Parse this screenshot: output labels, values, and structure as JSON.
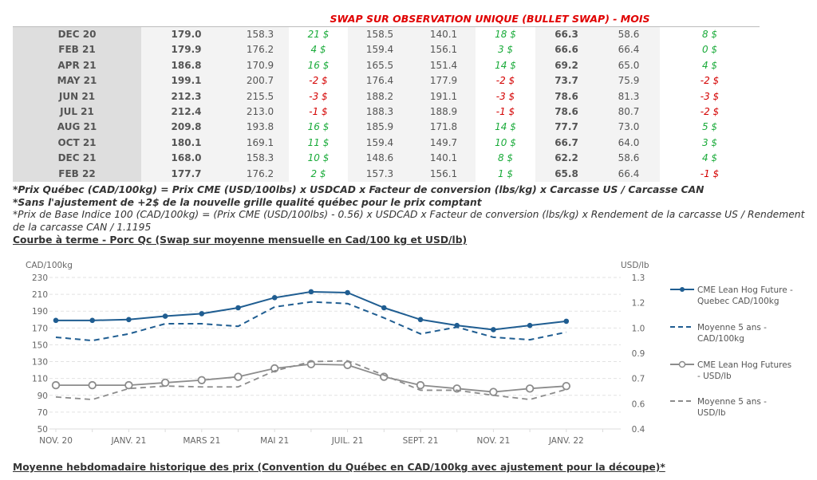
{
  "swap_title": "SWAP SUR OBSERVATION UNIQUE (BULLET SWAP) - MOIS",
  "table": {
    "rows": [
      [
        "DEC 20",
        "179.0",
        "158.3",
        "21 $",
        "158.5",
        "140.1",
        "18 $",
        "66.3",
        "58.6",
        "8 $"
      ],
      [
        "FEB 21",
        "179.9",
        "176.2",
        "4 $",
        "159.4",
        "156.1",
        "3 $",
        "66.6",
        "66.4",
        "0 $"
      ],
      [
        "APR 21",
        "186.8",
        "170.9",
        "16 $",
        "165.5",
        "151.4",
        "14 $",
        "69.2",
        "65.0",
        "4 $"
      ],
      [
        "MAY 21",
        "199.1",
        "200.7",
        "-2 $",
        "176.4",
        "177.9",
        "-2 $",
        "73.7",
        "75.9",
        "-2 $"
      ],
      [
        "JUN 21",
        "212.3",
        "215.5",
        "-3 $",
        "188.2",
        "191.1",
        "-3 $",
        "78.6",
        "81.3",
        "-3 $"
      ],
      [
        "JUL 21",
        "212.4",
        "213.0",
        "-1 $",
        "188.3",
        "188.9",
        "-1 $",
        "78.6",
        "80.7",
        "-2 $"
      ],
      [
        "AUG 21",
        "209.8",
        "193.8",
        "16 $",
        "185.9",
        "171.8",
        "14 $",
        "77.7",
        "73.0",
        "5 $"
      ],
      [
        "OCT 21",
        "180.1",
        "169.1",
        "11 $",
        "159.4",
        "149.7",
        "10 $",
        "66.7",
        "64.0",
        "3 $"
      ],
      [
        "DEC 21",
        "168.0",
        "158.3",
        "10 $",
        "148.6",
        "140.1",
        "8 $",
        "62.2",
        "58.6",
        "4 $"
      ],
      [
        "FEB 22",
        "177.7",
        "176.2",
        "2 $",
        "157.3",
        "156.1",
        "1 $",
        "65.8",
        "66.4",
        "-1 $"
      ]
    ]
  },
  "notes": {
    "note1": "*Prix Québec (CAD/100kg) = Prix CME (USD/100lbs) x USDCAD x Facteur de conversion (lbs/kg) x Carcasse US / Carcasse CAN",
    "note2": "*Sans l'ajustement de +2$ de la nouvelle grille qualité québec pour le prix comptant",
    "note3": "*Prix de Base Indice 100 (CAD/100kg) = (Prix CME (USD/100lbs) - 0.56) x USDCAD x Facteur de conversion (lbs/kg) x Rendement de la carcasse US / Rendement de la carcasse CAN / 1.1195"
  },
  "sections": {
    "chart_heading": "Courbe à terme - Porc Qc (Swap sur moyenne mensuelle en Cad/100 kg et USD/lb)",
    "bottom_heading": "Moyenne hebdomadaire historique des prix (Convention du Québec en CAD/100kg avec ajustement pour la découpe)*"
  },
  "colors": {
    "blue": "#1f5d91",
    "gray": "#8c8c8c",
    "positive": "#1aab3a",
    "negative": "#d40000",
    "title_red": "#e00000"
  },
  "chart_data": {
    "type": "line",
    "title": "Courbe à terme - Porc Qc (Swap sur moyenne mensuelle en Cad/100 kg et USD/lb)",
    "xlabel": "",
    "ylabel": "CAD/100kg",
    "ylabel_right": "USD/lb",
    "ylim": [
      50,
      230
    ],
    "ylim_right": [
      0.4,
      1.3
    ],
    "yticks": [
      "230",
      "210",
      "190",
      "170",
      "150",
      "130",
      "110",
      "90",
      "70",
      "50"
    ],
    "yticks_right": [
      "1.3",
      "1.2",
      "1.0",
      "0.9",
      "0.7",
      "0.6",
      "0.4"
    ],
    "xtick_labels": [
      "NOV. 20",
      "JANV. 21",
      "MARS 21",
      "MAI 21",
      "JUIL. 21",
      "SEPT. 21",
      "NOV. 21",
      "JANV. 22"
    ],
    "x": [
      "Nov 20",
      "Dec 20",
      "Jan 21",
      "Feb 21",
      "Mar 21",
      "Apr 21",
      "May 21",
      "Jun 21",
      "Jul 21",
      "Aug 21",
      "Sep 21",
      "Oct 21",
      "Nov 21",
      "Dec 21",
      "Jan 22"
    ],
    "grid": true,
    "legend_position": "right",
    "series": [
      {
        "name": "CME Lean Hog Future - Quebec CAD/100kg",
        "legend_lines": [
          "CME Lean Hog Future -",
          "Quebec CAD/100kg"
        ],
        "axis": "left",
        "style": "solid-dot",
        "values": [
          179,
          179,
          180,
          184,
          187,
          194,
          206,
          213,
          212,
          194,
          180,
          173,
          168,
          173,
          178
        ]
      },
      {
        "name": "Moyenne 5 ans - CAD/100kg",
        "legend_lines": [
          "Moyenne 5 ans -",
          "CAD/100kg"
        ],
        "axis": "left",
        "style": "dashed",
        "values": [
          159,
          155,
          163,
          175,
          175,
          172,
          195,
          201,
          199,
          182,
          163,
          171,
          159,
          156,
          165
        ]
      },
      {
        "name": "CME Lean Hog Futures - USD/lb",
        "legend_lines": [
          "CME Lean Hog Futures",
          "- USD/lb"
        ],
        "axis": "right",
        "style": "solid-circle",
        "values": [
          0.66,
          0.66,
          0.66,
          0.675,
          0.69,
          0.71,
          0.76,
          0.785,
          0.78,
          0.71,
          0.66,
          0.64,
          0.62,
          0.64,
          0.655
        ]
      },
      {
        "name": "Moyenne 5 ans - USD/lb",
        "legend_lines": [
          "Moyenne 5 ans -",
          "USD/lb"
        ],
        "axis": "right",
        "style": "dashed-gray",
        "values": [
          0.59,
          0.575,
          0.64,
          0.655,
          0.65,
          0.65,
          0.745,
          0.8,
          0.805,
          0.72,
          0.63,
          0.63,
          0.6,
          0.575,
          0.635
        ]
      }
    ]
  }
}
